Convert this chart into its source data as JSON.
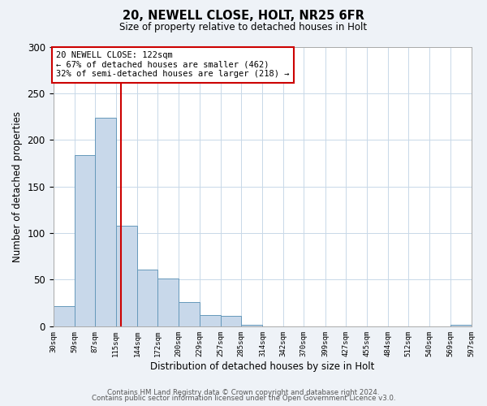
{
  "title": "20, NEWELL CLOSE, HOLT, NR25 6FR",
  "subtitle": "Size of property relative to detached houses in Holt",
  "xlabel": "Distribution of detached houses by size in Holt",
  "ylabel": "Number of detached properties",
  "bar_color": "#c8d8ea",
  "bar_edge_color": "#6699bb",
  "bin_edges": [
    30,
    59,
    87,
    115,
    144,
    172,
    200,
    229,
    257,
    285,
    314,
    342,
    370,
    399,
    427,
    455,
    484,
    512,
    540,
    569,
    597
  ],
  "bar_heights": [
    22,
    184,
    224,
    108,
    61,
    51,
    26,
    12,
    11,
    2,
    0,
    0,
    0,
    0,
    0,
    0,
    0,
    0,
    0,
    2
  ],
  "tick_labels": [
    "30sqm",
    "59sqm",
    "87sqm",
    "115sqm",
    "144sqm",
    "172sqm",
    "200sqm",
    "229sqm",
    "257sqm",
    "285sqm",
    "314sqm",
    "342sqm",
    "370sqm",
    "399sqm",
    "427sqm",
    "455sqm",
    "484sqm",
    "512sqm",
    "540sqm",
    "569sqm",
    "597sqm"
  ],
  "vline_x": 122,
  "vline_color": "#cc0000",
  "annotation_title": "20 NEWELL CLOSE: 122sqm",
  "annotation_line1": "← 67% of detached houses are smaller (462)",
  "annotation_line2": "32% of semi-detached houses are larger (218) →",
  "annotation_box_color": "#cc0000",
  "ylim": [
    0,
    300
  ],
  "yticks": [
    0,
    50,
    100,
    150,
    200,
    250,
    300
  ],
  "footer1": "Contains HM Land Registry data © Crown copyright and database right 2024.",
  "footer2": "Contains public sector information licensed under the Open Government Licence v3.0.",
  "background_color": "#eef2f7",
  "plot_bg_color": "#ffffff"
}
